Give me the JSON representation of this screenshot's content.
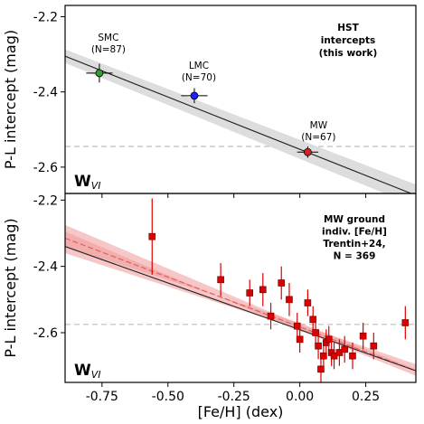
{
  "chart_data": [
    {
      "type": "scatter",
      "panel": "top",
      "ylabel": "P-L intercept (mag)",
      "ylim": [
        -2.67,
        -2.17
      ],
      "yticks": [
        "-2.2",
        "-2.4",
        "-2.6"
      ],
      "ytick_values": [
        -2.2,
        -2.4,
        -2.6
      ],
      "band_label": "W",
      "band_sub": "VI",
      "legend_lines": [
        "HST",
        "intercepts",
        "(this work)"
      ],
      "reference_line_y": -2.545,
      "fit": {
        "x0": -0.89,
        "y0": -2.305,
        "x1": 0.44,
        "y1": -2.675,
        "band_half_width": 0.018
      },
      "points": [
        {
          "x": -0.76,
          "y": -2.35,
          "xerr": 0.05,
          "yerr": 0.025,
          "color": "#2ca02c",
          "label_lines": [
            "SMC",
            "(N=87)"
          ]
        },
        {
          "x": -0.4,
          "y": -2.41,
          "xerr": 0.05,
          "yerr": 0.02,
          "color": "#1f1fff",
          "label_lines": [
            "LMC",
            "(N=70)"
          ]
        },
        {
          "x": 0.03,
          "y": -2.56,
          "xerr": 0.04,
          "yerr": 0.015,
          "color": "#e02020",
          "label_lines": [
            "MW",
            "(N=67)"
          ]
        }
      ]
    },
    {
      "type": "scatter",
      "panel": "bottom",
      "xlabel": "[Fe/H] (dex)",
      "ylabel": "P-L intercept (mag)",
      "xlim": [
        -0.89,
        0.44
      ],
      "ylim": [
        -2.75,
        -2.18
      ],
      "xticks": [
        "-0.75",
        "-0.50",
        "-0.25",
        "0.00",
        "0.25"
      ],
      "xtick_values": [
        -0.75,
        -0.5,
        -0.25,
        0.0,
        0.25
      ],
      "yticks": [
        "-2.2",
        "-2.4",
        "-2.6"
      ],
      "ytick_values": [
        -2.2,
        -2.4,
        -2.6
      ],
      "band_label": "W",
      "band_sub": "VI",
      "legend_lines": [
        "MW ground",
        "indiv. [Fe/H]",
        "Trentin+24,",
        "N = 369"
      ],
      "reference_line_y": -2.575,
      "fit": {
        "x0": -0.89,
        "y0": -2.34,
        "x1": 0.44,
        "y1": -2.715
      },
      "dashed_fit": {
        "x0": -0.89,
        "y0": -2.315,
        "x1": 0.44,
        "y1": -2.715
      },
      "band": {
        "upper": [
          [
            -0.89,
            -2.275
          ],
          [
            0.0,
            -2.575
          ],
          [
            0.44,
            -2.695
          ]
        ],
        "lower": [
          [
            -0.89,
            -2.36
          ],
          [
            0.0,
            -2.59
          ],
          [
            0.44,
            -2.73
          ]
        ]
      },
      "point_color": "#dd0000",
      "points": [
        {
          "x": -0.56,
          "y": -2.31,
          "yerr": 0.115
        },
        {
          "x": -0.3,
          "y": -2.44,
          "yerr": 0.05
        },
        {
          "x": -0.19,
          "y": -2.48,
          "yerr": 0.04
        },
        {
          "x": -0.14,
          "y": -2.47,
          "yerr": 0.05
        },
        {
          "x": -0.11,
          "y": -2.55,
          "yerr": 0.04
        },
        {
          "x": -0.07,
          "y": -2.45,
          "yerr": 0.05
        },
        {
          "x": -0.04,
          "y": -2.5,
          "yerr": 0.05
        },
        {
          "x": -0.01,
          "y": -2.58,
          "yerr": 0.04
        },
        {
          "x": 0.0,
          "y": -2.62,
          "yerr": 0.04
        },
        {
          "x": 0.03,
          "y": -2.51,
          "yerr": 0.04
        },
        {
          "x": 0.05,
          "y": -2.56,
          "yerr": 0.04
        },
        {
          "x": 0.06,
          "y": -2.6,
          "yerr": 0.04
        },
        {
          "x": 0.07,
          "y": -2.64,
          "yerr": 0.04
        },
        {
          "x": 0.08,
          "y": -2.71,
          "yerr": 0.04
        },
        {
          "x": 0.09,
          "y": -2.67,
          "yerr": 0.04
        },
        {
          "x": 0.1,
          "y": -2.63,
          "yerr": 0.04
        },
        {
          "x": 0.11,
          "y": -2.62,
          "yerr": 0.04
        },
        {
          "x": 0.12,
          "y": -2.66,
          "yerr": 0.04
        },
        {
          "x": 0.13,
          "y": -2.67,
          "yerr": 0.04
        },
        {
          "x": 0.15,
          "y": -2.66,
          "yerr": 0.04
        },
        {
          "x": 0.17,
          "y": -2.65,
          "yerr": 0.04
        },
        {
          "x": 0.2,
          "y": -2.67,
          "yerr": 0.04
        },
        {
          "x": 0.24,
          "y": -2.61,
          "yerr": 0.04
        },
        {
          "x": 0.28,
          "y": -2.64,
          "yerr": 0.04
        },
        {
          "x": 0.4,
          "y": -2.57,
          "yerr": 0.05
        }
      ]
    }
  ]
}
